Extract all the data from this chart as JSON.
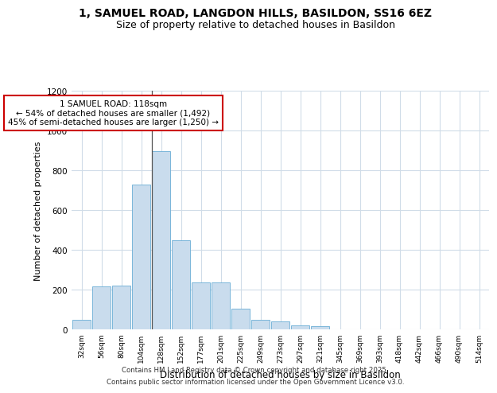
{
  "title": "1, SAMUEL ROAD, LANGDON HILLS, BASILDON, SS16 6EZ",
  "subtitle": "Size of property relative to detached houses in Basildon",
  "xlabel": "Distribution of detached houses by size in Basildon",
  "ylabel": "Number of detached properties",
  "bar_color": "#c9dced",
  "bar_edge_color": "#6aadd5",
  "background_color": "#ffffff",
  "plot_bg_color": "#ffffff",
  "grid_color": "#d0dce8",
  "categories": [
    "32sqm",
    "56sqm",
    "80sqm",
    "104sqm",
    "128sqm",
    "152sqm",
    "177sqm",
    "201sqm",
    "225sqm",
    "249sqm",
    "273sqm",
    "297sqm",
    "321sqm",
    "345sqm",
    "369sqm",
    "393sqm",
    "418sqm",
    "442sqm",
    "466sqm",
    "490sqm",
    "514sqm"
  ],
  "values": [
    50,
    215,
    220,
    730,
    895,
    450,
    235,
    235,
    105,
    50,
    40,
    20,
    15,
    0,
    0,
    0,
    0,
    0,
    0,
    0,
    0
  ],
  "annotation_text": "1 SAMUEL ROAD: 118sqm\n← 54% of detached houses are smaller (1,492)\n45% of semi-detached houses are larger (1,250) →",
  "vline_x": 3.55,
  "ylim": [
    0,
    1200
  ],
  "yticks": [
    0,
    200,
    400,
    600,
    800,
    1000,
    1200
  ],
  "footer_line1": "Contains HM Land Registry data © Crown copyright and database right 2025.",
  "footer_line2": "Contains public sector information licensed under the Open Government Licence v3.0."
}
